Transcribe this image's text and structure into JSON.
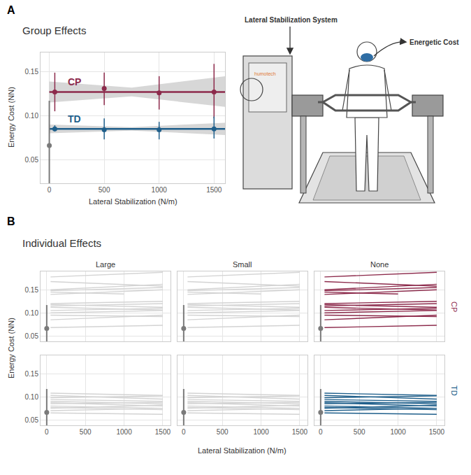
{
  "panel_labels": [
    "A",
    "B"
  ],
  "diagram": {
    "system": "Lateral Stabilization System",
    "output": "Energetic Cost",
    "brand": "humotech"
  },
  "chart_data": [
    {
      "type": "line",
      "title": "Group Effects",
      "x_label": "Lateral Stabilization (N/m)",
      "y_label": "Energy Cost (NN)",
      "xlim": [
        -80,
        1600
      ],
      "ylim": [
        0.023,
        0.172
      ],
      "xticks": [
        0,
        500,
        1000,
        1500
      ],
      "yticks": [
        0.05,
        {
          "value": 0.1,
          "label": "0.10"
        },
        0.15
      ],
      "grid": true,
      "reference": {
        "x": 0,
        "value": 0.066,
        "error_low": 0.015,
        "error_high": 0.117,
        "color": "#7a7a7a"
      },
      "series": [
        {
          "name": "CP",
          "color": "#8c2a4b",
          "x": [
            50,
            500,
            1000,
            1500
          ],
          "values": [
            0.127,
            0.131,
            0.126,
            0.127
          ],
          "error_low": [
            0.105,
            0.112,
            0.107,
            0.097
          ],
          "error_high": [
            0.149,
            0.149,
            0.145,
            0.159
          ],
          "fit": {
            "x": [
              0,
              1600
            ],
            "values": [
              0.127,
              0.127
            ]
          },
          "band": {
            "x": [
              0,
              750,
              1600
            ],
            "low": [
              0.115,
              0.122,
              0.11
            ],
            "high": [
              0.139,
              0.132,
              0.145
            ]
          }
        },
        {
          "name": "TD",
          "color": "#1f5f8b",
          "x": [
            50,
            500,
            1000,
            1500
          ],
          "values": [
            0.085,
            0.084,
            0.084,
            0.085
          ],
          "error_low": [
            0.082,
            0.073,
            0.073,
            0.074
          ],
          "error_high": [
            0.089,
            0.097,
            0.093,
            0.099
          ],
          "fit": {
            "x": [
              0,
              1600
            ],
            "values": [
              0.085,
              0.085
            ]
          },
          "band": {
            "x": [
              0,
              750,
              1600
            ],
            "low": [
              0.08,
              0.083,
              0.078
            ],
            "high": [
              0.09,
              0.087,
              0.092
            ]
          }
        }
      ]
    },
    {
      "type": "line",
      "title": "Individual Effects",
      "x_label": "Lateral Stabilization (N/m)",
      "y_label": "Energy Cost (NN)",
      "xlim": [
        -80,
        1600
      ],
      "ylim": [
        0.038,
        0.19
      ],
      "xticks": [
        0,
        500,
        1000,
        1500
      ],
      "yticks": [
        0.05,
        {
          "value": 0.1,
          "label": "0.10"
        },
        0.15
      ],
      "grid": true,
      "columns": [
        "Large",
        "Small",
        "None"
      ],
      "muted_color": "#d3d3d3",
      "reference": {
        "x": 0,
        "value": 0.066,
        "error_low": 0.015,
        "error_high": 0.117,
        "color": "#7a7a7a"
      },
      "rows": [
        {
          "name": "CP",
          "color": "#8c2a4b",
          "highlight": "None",
          "subjects": [
            {
              "x": [
                50,
                1500
              ],
              "values": [
                0.178,
                0.188
              ]
            },
            {
              "x": [
                50,
                1500
              ],
              "values": [
                0.168,
                0.158
              ]
            },
            {
              "x": [
                50,
                1500
              ],
              "values": [
                0.15,
                0.162
              ]
            },
            {
              "x": [
                50,
                1500
              ],
              "values": [
                0.148,
                0.155
              ]
            },
            {
              "x": [
                50,
                1000
              ],
              "values": [
                0.145,
                0.141
              ]
            },
            {
              "x": [
                50,
                1500
              ],
              "values": [
                0.14,
                0.15
              ]
            },
            {
              "x": [
                50,
                1500
              ],
              "values": [
                0.12,
                0.125
              ]
            },
            {
              "x": [
                50,
                1500
              ],
              "values": [
                0.118,
                0.112
              ]
            },
            {
              "x": [
                50,
                1500
              ],
              "values": [
                0.115,
                0.12
              ]
            },
            {
              "x": [
                50,
                1500
              ],
              "values": [
                0.112,
                0.106
              ]
            },
            {
              "x": [
                50,
                1500
              ],
              "values": [
                0.105,
                0.11
              ]
            },
            {
              "x": [
                50,
                1500
              ],
              "values": [
                0.1,
                0.105
              ]
            },
            {
              "x": [
                50,
                1500
              ],
              "values": [
                0.095,
                0.092
              ]
            },
            {
              "x": [
                50,
                1500
              ],
              "values": [
                0.085,
                0.095
              ]
            },
            {
              "x": [
                50,
                1500
              ],
              "values": [
                0.068,
                0.073
              ]
            }
          ]
        },
        {
          "name": "TD",
          "color": "#1f5f8b",
          "highlight": "None",
          "subjects": [
            {
              "x": [
                50,
                1500
              ],
              "values": [
                0.108,
                0.103
              ]
            },
            {
              "x": [
                50,
                1500
              ],
              "values": [
                0.103,
                0.095
              ]
            },
            {
              "x": [
                50,
                1500
              ],
              "values": [
                0.098,
                0.102
              ]
            },
            {
              "x": [
                50,
                1500
              ],
              "values": [
                0.094,
                0.09
              ]
            },
            {
              "x": [
                50,
                1500
              ],
              "values": [
                0.09,
                0.085
              ]
            },
            {
              "x": [
                50,
                1500
              ],
              "values": [
                0.087,
                0.08
              ]
            },
            {
              "x": [
                50,
                1500
              ],
              "values": [
                0.085,
                0.088
              ]
            },
            {
              "x": [
                50,
                1500
              ],
              "values": [
                0.08,
                0.075
              ]
            },
            {
              "x": [
                50,
                1500
              ],
              "values": [
                0.077,
                0.072
              ]
            },
            {
              "x": [
                50,
                1500
              ],
              "values": [
                0.075,
                0.082
              ]
            },
            {
              "x": [
                50,
                1500
              ],
              "values": [
                0.07,
                0.075
              ]
            },
            {
              "x": [
                50,
                1500
              ],
              "values": [
                0.065,
                0.062
              ]
            }
          ]
        }
      ]
    }
  ]
}
